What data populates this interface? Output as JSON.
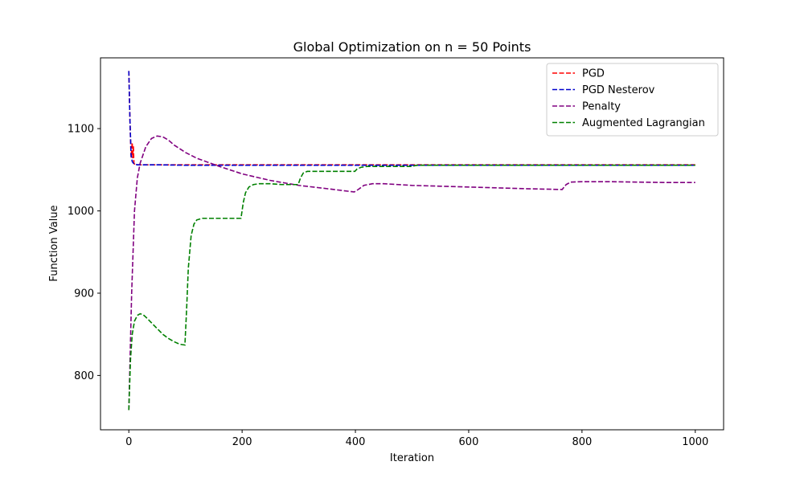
{
  "chart_data": {
    "type": "line",
    "title": "Global Optimization on n = 50 Points",
    "xlabel": "Iteration",
    "ylabel": "Function Value",
    "xlim": [
      -50,
      1050
    ],
    "ylim": [
      734,
      1186
    ],
    "xticks": [
      0,
      200,
      400,
      600,
      800,
      1000
    ],
    "yticks": [
      800,
      900,
      1000,
      1100
    ],
    "grid": false,
    "legend_position": "top-right",
    "line_style": "dashed",
    "series": [
      {
        "name": "PGD",
        "color": "#ff0000",
        "x": [
          0,
          2,
          4,
          6,
          7,
          8,
          9,
          10,
          12,
          15,
          20,
          40,
          100,
          1000
        ],
        "y": [
          1170,
          1110,
          1065,
          1083,
          1064,
          1079,
          1058,
          1057,
          1056,
          1056,
          1056,
          1056,
          1056,
          1056
        ]
      },
      {
        "name": "PGD Nesterov",
        "color": "#0000cc",
        "x": [
          0,
          2,
          4,
          6,
          8,
          10,
          15,
          25,
          50,
          100,
          1000
        ],
        "y": [
          1170,
          1110,
          1068,
          1060,
          1058,
          1057,
          1056,
          1056,
          1056,
          1055.5,
          1055.5
        ]
      },
      {
        "name": "Penalty",
        "color": "#800080",
        "x": [
          0,
          5,
          10,
          15,
          20,
          30,
          40,
          50,
          60,
          70,
          80,
          100,
          120,
          140,
          160,
          200,
          250,
          300,
          350,
          398,
          405,
          415,
          430,
          450,
          500,
          550,
          600,
          650,
          700,
          765,
          772,
          780,
          800,
          850,
          900,
          950,
          1000
        ],
        "y": [
          758,
          900,
          1000,
          1040,
          1058,
          1078,
          1088,
          1091,
          1090,
          1086,
          1080,
          1071,
          1064,
          1059,
          1054,
          1045,
          1037,
          1031,
          1027,
          1023,
          1026,
          1031,
          1033,
          1033,
          1031,
          1030,
          1029,
          1028,
          1027,
          1026,
          1032,
          1035,
          1035.5,
          1035.5,
          1035,
          1034.5,
          1034.5
        ]
      },
      {
        "name": "Augmented Lagrangian",
        "color": "#008000",
        "x": [
          0,
          3,
          6,
          10,
          15,
          20,
          25,
          30,
          40,
          50,
          60,
          70,
          80,
          90,
          99,
          102,
          105,
          110,
          115,
          120,
          130,
          140,
          160,
          180,
          198,
          202,
          206,
          212,
          220,
          230,
          250,
          270,
          299,
          303,
          308,
          315,
          325,
          340,
          360,
          380,
          399,
          403,
          410,
          420,
          450,
          500,
          505,
          510,
          520,
          550,
          600,
          700,
          800,
          900,
          1000
        ],
        "y": [
          758,
          820,
          850,
          866,
          873,
          875,
          874,
          871,
          864,
          857,
          850,
          845,
          841,
          838,
          837,
          880,
          930,
          970,
          984,
          989,
          991,
          991,
          991,
          991,
          991,
          1010,
          1022,
          1029,
          1032,
          1033,
          1033,
          1032,
          1032,
          1040,
          1046,
          1048,
          1048,
          1048,
          1048,
          1048,
          1048,
          1051,
          1053,
          1054,
          1054,
          1054,
          1055,
          1055.5,
          1055.5,
          1055.5,
          1055.5,
          1055.5,
          1055.5,
          1055.5,
          1055.5
        ]
      }
    ]
  }
}
